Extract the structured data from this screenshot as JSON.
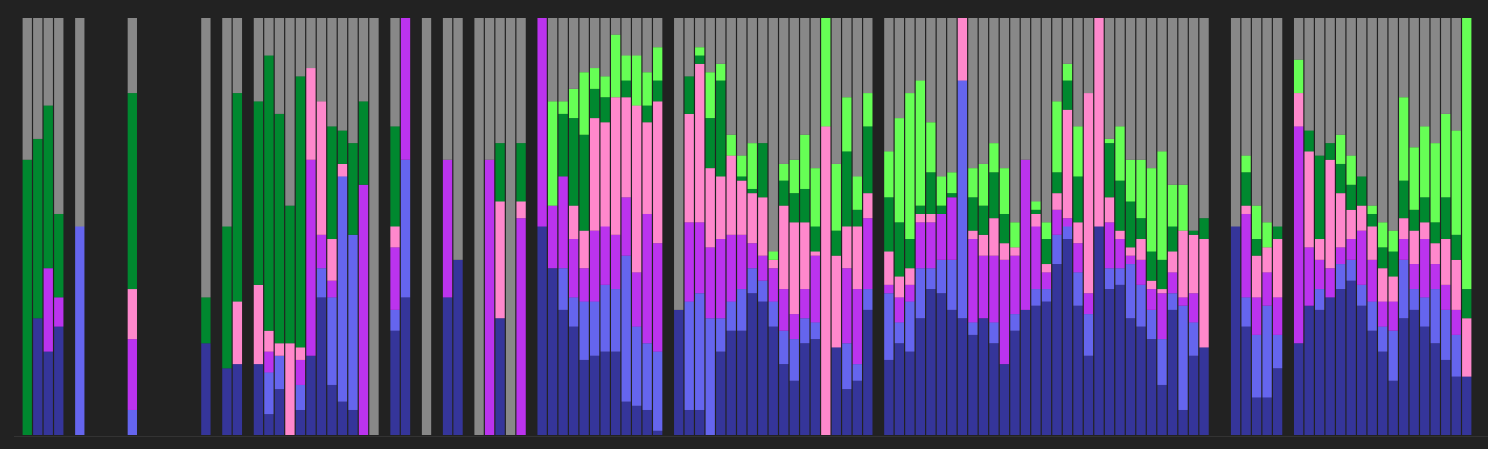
{
  "chart_data": {
    "type": "stacked_bar",
    "ylim": [
      0,
      100
    ],
    "series": [
      {
        "color": "#35359a",
        "values": [
          0,
          28,
          20,
          26,
          0,
          0,
          0,
          0,
          0,
          0,
          0,
          0,
          0,
          0,
          0,
          0,
          0,
          22,
          0,
          16,
          17,
          0,
          17,
          5,
          11,
          0,
          6,
          19,
          33,
          12,
          8,
          6,
          0,
          0,
          0,
          25,
          33,
          0,
          0,
          0,
          33,
          42,
          0,
          0,
          0,
          28,
          0,
          0,
          0,
          50,
          40,
          30,
          26,
          18,
          19,
          20,
          20,
          8,
          7,
          6,
          1,
          0,
          30,
          6,
          6,
          0,
          20,
          25,
          25,
          34,
          32,
          26,
          17,
          13,
          22,
          23,
          0,
          21,
          11,
          13,
          30,
          0,
          18,
          22,
          20,
          28,
          35,
          34,
          30,
          28,
          24,
          28,
          22,
          17,
          25,
          30,
          31,
          32,
          41,
          47,
          31,
          19,
          50,
          35,
          36,
          28,
          26,
          23,
          12,
          30,
          6,
          19,
          21,
          0,
          0,
          50,
          26,
          9,
          9,
          16,
          0,
          22,
          31,
          30,
          33,
          35,
          37,
          31,
          25,
          20,
          13,
          28,
          30,
          26,
          22,
          18,
          14,
          14
        ]
      },
      {
        "color": "#6565ee",
        "values": [
          0,
          0,
          0,
          0,
          0,
          50,
          0,
          0,
          0,
          0,
          6,
          0,
          0,
          0,
          0,
          0,
          0,
          0,
          0,
          0,
          0,
          0,
          0,
          10,
          8,
          0,
          6,
          0,
          7,
          21,
          54,
          42,
          0,
          0,
          0,
          5,
          33,
          0,
          0,
          0,
          0,
          0,
          0,
          0,
          0,
          0,
          0,
          0,
          0,
          0,
          0,
          10,
          7,
          14,
          13,
          16,
          15,
          35,
          19,
          16,
          19,
          0,
          0,
          26,
          28,
          28,
          8,
          7,
          10,
          6,
          5,
          6,
          8,
          10,
          6,
          4,
          0,
          0,
          11,
          4,
          5,
          0,
          16,
          5,
          12,
          12,
          5,
          8,
          12,
          57,
          3,
          0,
          5,
          0,
          4,
          0,
          4,
          3,
          7,
          3,
          8,
          10,
          0,
          5,
          4,
          13,
          10,
          7,
          11,
          4,
          25,
          8,
          0,
          0,
          0,
          0,
          7,
          15,
          22,
          8,
          0,
          0,
          0,
          5,
          0,
          6,
          5,
          5,
          7,
          6,
          12,
          14,
          5,
          7,
          13,
          12,
          10,
          0
        ]
      },
      {
        "color": "#bb33ee",
        "values": [
          0,
          0,
          20,
          7,
          0,
          0,
          0,
          0,
          0,
          0,
          17,
          0,
          0,
          0,
          0,
          0,
          0,
          0,
          0,
          0,
          0,
          0,
          0,
          5,
          0,
          0,
          6,
          47,
          8,
          4,
          0,
          0,
          60,
          0,
          0,
          15,
          34,
          0,
          0,
          0,
          33,
          0,
          0,
          0,
          66,
          0,
          0,
          52,
          0,
          50,
          15,
          22,
          14,
          8,
          17,
          14,
          13,
          14,
          13,
          31,
          26,
          0,
          0,
          19,
          17,
          17,
          19,
          16,
          13,
          6,
          6,
          8,
          10,
          6,
          7,
          16,
          0,
          0,
          18,
          18,
          17,
          0,
          2,
          6,
          4,
          11,
          11,
          11,
          15,
          0,
          20,
          15,
          16,
          25,
          14,
          36,
          15,
          4,
          6,
          2,
          7,
          5,
          0,
          11,
          7,
          2,
          6,
          5,
          11,
          5,
          2,
          7,
          0,
          0,
          0,
          0,
          20,
          9,
          8,
          9,
          0,
          52,
          14,
          7,
          7,
          4,
          5,
          13,
          10,
          6,
          7,
          5,
          6,
          14,
          6,
          6,
          6,
          0
        ]
      },
      {
        "color": "#ff88cc",
        "values": [
          0,
          0,
          0,
          0,
          0,
          0,
          0,
          0,
          0,
          0,
          12,
          0,
          0,
          0,
          0,
          0,
          0,
          0,
          0,
          0,
          15,
          0,
          19,
          5,
          3,
          22,
          3,
          22,
          32,
          10,
          3,
          0,
          0,
          0,
          0,
          5,
          0,
          0,
          0,
          0,
          0,
          0,
          0,
          0,
          0,
          28,
          0,
          4,
          0,
          0,
          0,
          0,
          8,
          9,
          27,
          25,
          33,
          24,
          40,
          22,
          34,
          0,
          0,
          26,
          38,
          19,
          15,
          19,
          13,
          12,
          14,
          2,
          20,
          22,
          16,
          1,
          74,
          22,
          10,
          15,
          6,
          0,
          8,
          5,
          4,
          2,
          2,
          0,
          0,
          15,
          2,
          5,
          9,
          4,
          2,
          0,
          3,
          2,
          4,
          26,
          5,
          48,
          50,
          6,
          2,
          2,
          5,
          2,
          1,
          5,
          16,
          14,
          26,
          0,
          0,
          0,
          2,
          10,
          6,
          14,
          0,
          8,
          23,
          5,
          26,
          13,
          7,
          6,
          8,
          8,
          6,
          5,
          8,
          4,
          5,
          11,
          12,
          14
        ]
      },
      {
        "color": "#00882f",
        "values": [
          66,
          43,
          39,
          20,
          0,
          0,
          0,
          0,
          0,
          0,
          47,
          0,
          0,
          0,
          0,
          0,
          0,
          11,
          0,
          34,
          50,
          0,
          44,
          66,
          55,
          33,
          65,
          0,
          0,
          27,
          8,
          22,
          20,
          0,
          0,
          24,
          0,
          0,
          0,
          0,
          0,
          0,
          0,
          0,
          0,
          14,
          0,
          14,
          0,
          0,
          0,
          15,
          21,
          23,
          7,
          6,
          0,
          4,
          0,
          4,
          5,
          0,
          0,
          9,
          2,
          12,
          23,
          0,
          1,
          1,
          13,
          0,
          6,
          7,
          8,
          6,
          0,
          6,
          18,
          4,
          16,
          0,
          13,
          13,
          7,
          2,
          10,
          2,
          1,
          0,
          8,
          7,
          11,
          7,
          0,
          0,
          1,
          6,
          5,
          7,
          11,
          0,
          0,
          13,
          12,
          11,
          5,
          7,
          7,
          6,
          0,
          1,
          5,
          0,
          0,
          0,
          8,
          4,
          0,
          3,
          0,
          0,
          5,
          20,
          4,
          7,
          6,
          7,
          3,
          5,
          6,
          9,
          5,
          6,
          5,
          10,
          6,
          7
        ]
      },
      {
        "color": "#66ff55",
        "values": [
          0,
          0,
          0,
          0,
          0,
          0,
          0,
          0,
          0,
          0,
          0,
          0,
          0,
          0,
          0,
          0,
          0,
          0,
          0,
          0,
          0,
          0,
          0,
          0,
          0,
          0,
          0,
          0,
          0,
          0,
          0,
          0,
          0,
          0,
          0,
          0,
          0,
          0,
          0,
          0,
          0,
          0,
          0,
          0,
          0,
          0,
          0,
          0,
          0,
          0,
          25,
          3,
          7,
          15,
          5,
          5,
          15,
          6,
          12,
          8,
          8,
          0,
          0,
          0,
          2,
          11,
          4,
          5,
          5,
          11,
          0,
          2,
          4,
          8,
          13,
          14,
          26,
          16,
          13,
          8,
          8,
          0,
          11,
          25,
          35,
          30,
          12,
          7,
          5,
          0,
          7,
          10,
          7,
          11,
          6,
          0,
          2,
          4,
          17,
          4,
          12,
          0,
          0,
          1,
          13,
          10,
          14,
          20,
          26,
          10,
          11,
          0,
          0,
          0,
          0,
          0,
          4,
          8,
          6,
          0,
          0,
          8,
          0,
          0,
          0,
          7,
          7,
          0,
          2,
          6,
          5,
          20,
          15,
          17,
          19,
          20,
          25,
          65
        ]
      },
      {
        "color": "#888888",
        "values": [
          34,
          29,
          21,
          47,
          0,
          50,
          0,
          0,
          0,
          0,
          18,
          0,
          0,
          0,
          0,
          0,
          0,
          67,
          0,
          50,
          18,
          0,
          20,
          9,
          23,
          45,
          14,
          12,
          20,
          26,
          27,
          30,
          20,
          100,
          0,
          26,
          0,
          0,
          100,
          0,
          34,
          58,
          0,
          100,
          34,
          30,
          100,
          30,
          0,
          0,
          20,
          20,
          17,
          13,
          12,
          14,
          4,
          9,
          9,
          13,
          7,
          0,
          70,
          14,
          7,
          13,
          11,
          28,
          33,
          30,
          30,
          56,
          35,
          34,
          28,
          36,
          0,
          35,
          19,
          38,
          18,
          0,
          32,
          24,
          18,
          15,
          25,
          38,
          37,
          0,
          36,
          35,
          30,
          36,
          49,
          34,
          44,
          49,
          20,
          11,
          26,
          18,
          0,
          29,
          26,
          34,
          34,
          36,
          32,
          40,
          40,
          51,
          48,
          0,
          0,
          50,
          33,
          45,
          49,
          50,
          0,
          10,
          27,
          33,
          30,
          28,
          33,
          38,
          45,
          49,
          51,
          19,
          31,
          26,
          30,
          23,
          27,
          0
        ]
      }
    ]
  }
}
